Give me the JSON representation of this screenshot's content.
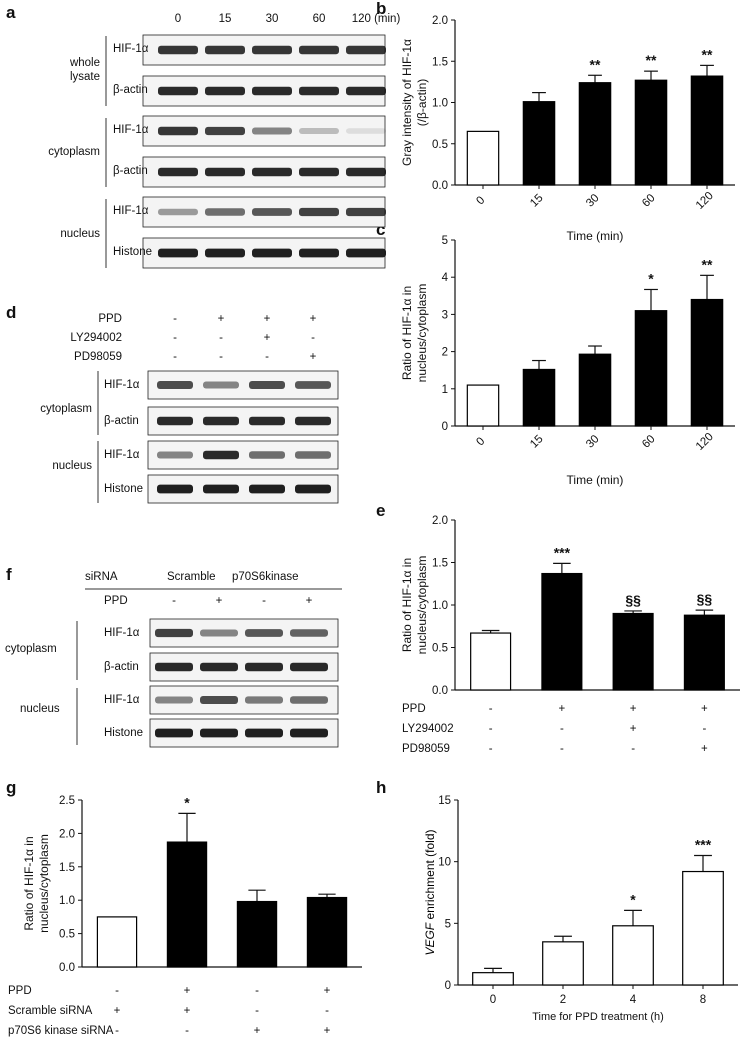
{
  "panels": {
    "a": {
      "letter": "a",
      "times": [
        "0",
        "15",
        "30",
        "60",
        "120 (min)"
      ],
      "group_whole": [
        "whole",
        "lysate"
      ],
      "group_cytoplasm": "cytoplasm",
      "group_nucleus": "nucleus",
      "rows": [
        "HIF-1α",
        "β-actin",
        "HIF-1α",
        "β-actin",
        "HIF-1α",
        "Histone"
      ],
      "band_levels": [
        [
          0.85,
          0.85,
          0.85,
          0.85,
          0.85
        ],
        [
          0.9,
          0.9,
          0.9,
          0.9,
          0.9
        ],
        [
          0.85,
          0.8,
          0.5,
          0.25,
          0.1
        ],
        [
          0.9,
          0.9,
          0.9,
          0.9,
          0.9
        ],
        [
          0.4,
          0.6,
          0.7,
          0.8,
          0.8
        ],
        [
          0.95,
          0.95,
          0.95,
          0.95,
          0.95
        ]
      ]
    },
    "d": {
      "letter": "d",
      "treatments": [
        {
          "label": "PPD",
          "signs": [
            "-",
            "+",
            "+",
            "+"
          ]
        },
        {
          "label": "LY294002",
          "signs": [
            "-",
            "-",
            "+",
            "-"
          ]
        },
        {
          "label": "PD98059",
          "signs": [
            "-",
            "-",
            "-",
            "+"
          ]
        }
      ],
      "group_cytoplasm": "cytoplasm",
      "group_nucleus": "nucleus",
      "rows": [
        "HIF-1α",
        "β-actin",
        "HIF-1α",
        "Histone"
      ],
      "band_levels": [
        [
          0.75,
          0.5,
          0.75,
          0.7
        ],
        [
          0.9,
          0.9,
          0.9,
          0.9
        ],
        [
          0.5,
          0.9,
          0.6,
          0.6
        ],
        [
          0.95,
          0.95,
          0.95,
          0.95
        ]
      ]
    },
    "f": {
      "letter": "f",
      "sirna_label": "siRNA",
      "sirna_groups": [
        "Scramble",
        "p70S6kinase"
      ],
      "ppd_label": "PPD",
      "ppd_signs": [
        "-",
        "+",
        "-",
        "+"
      ],
      "group_cytoplasm": "cytoplasm",
      "group_nucleus": "nucleus",
      "rows": [
        "HIF-1α",
        "β-actin",
        "HIF-1α",
        "Histone"
      ],
      "band_levels": [
        [
          0.8,
          0.5,
          0.7,
          0.65
        ],
        [
          0.9,
          0.9,
          0.9,
          0.9
        ],
        [
          0.5,
          0.75,
          0.55,
          0.6
        ],
        [
          0.95,
          0.95,
          0.95,
          0.95
        ]
      ]
    }
  },
  "chart_data": [
    {
      "panel": "b",
      "type": "bar",
      "ylabel": [
        "Gray intensity of HIF-1α",
        "(/β-actin)"
      ],
      "xlabel": "Time (min)",
      "categories": [
        "0",
        "15",
        "30",
        "60",
        "120"
      ],
      "values": [
        0.65,
        1.01,
        1.24,
        1.27,
        1.32
      ],
      "errors": [
        0.0,
        0.11,
        0.09,
        0.11,
        0.13
      ],
      "fills": [
        "white",
        "black",
        "black",
        "black",
        "black"
      ],
      "annotations": [
        "",
        "",
        "**",
        "**",
        "**"
      ],
      "ylim": [
        0,
        2.0
      ],
      "yticks": [
        "0.0",
        "0.5",
        "1.0",
        "1.5",
        "2.0"
      ],
      "grid": false
    },
    {
      "panel": "c",
      "type": "bar",
      "ylabel": [
        "Ratio of HIF-1α in",
        "nucleus/cytoplasm"
      ],
      "xlabel": "Time (min)",
      "categories": [
        "0",
        "15",
        "30",
        "60",
        "120"
      ],
      "values": [
        1.1,
        1.52,
        1.93,
        3.1,
        3.4
      ],
      "errors": [
        0.0,
        0.24,
        0.22,
        0.57,
        0.65
      ],
      "fills": [
        "white",
        "black",
        "black",
        "black",
        "black"
      ],
      "annotations": [
        "",
        "",
        "",
        "*",
        "**"
      ],
      "ylim": [
        0,
        5
      ],
      "yticks": [
        "0",
        "1",
        "2",
        "3",
        "4",
        "5"
      ],
      "grid": false
    },
    {
      "panel": "e",
      "type": "bar",
      "ylabel": [
        "Ratio of HIF-1α in",
        "nucleus/cytoplasm"
      ],
      "categories": [
        "1",
        "2",
        "3",
        "4"
      ],
      "values": [
        0.67,
        1.37,
        0.9,
        0.88
      ],
      "errors": [
        0.03,
        0.12,
        0.03,
        0.06
      ],
      "fills": [
        "white",
        "black",
        "black",
        "black"
      ],
      "annotations": [
        "",
        "***",
        "§§",
        "§§"
      ],
      "ylim": [
        0,
        2.0
      ],
      "yticks": [
        "0.0",
        "0.5",
        "1.0",
        "1.5",
        "2.0"
      ],
      "treatments": [
        {
          "label": "PPD",
          "signs": [
            "-",
            "+",
            "+",
            "+"
          ]
        },
        {
          "label": "LY294002",
          "signs": [
            "-",
            "-",
            "+",
            "-"
          ]
        },
        {
          "label": "PD98059",
          "signs": [
            "-",
            "-",
            "-",
            "+"
          ]
        }
      ],
      "grid": false
    },
    {
      "panel": "g",
      "type": "bar",
      "ylabel": [
        "Ratio of HIF-1α in",
        "nucleus/cytoplasm"
      ],
      "categories": [
        "1",
        "2",
        "3",
        "4"
      ],
      "values": [
        0.75,
        1.87,
        0.98,
        1.04
      ],
      "errors": [
        0.0,
        0.43,
        0.17,
        0.05
      ],
      "fills": [
        "white",
        "black",
        "black",
        "black"
      ],
      "annotations": [
        "",
        "*",
        "",
        ""
      ],
      "ylim": [
        0,
        2.5
      ],
      "yticks": [
        "0.0",
        "0.5",
        "1.0",
        "1.5",
        "2.0",
        "2.5"
      ],
      "treatments": [
        {
          "label": "PPD",
          "signs": [
            "-",
            "+",
            "-",
            "+"
          ]
        },
        {
          "label": "Scramble siRNA",
          "signs": [
            "+",
            "+",
            "-",
            "-"
          ]
        },
        {
          "label": "p70S6 kinase siRNA",
          "signs": [
            "-",
            "-",
            "+",
            "+"
          ]
        }
      ],
      "grid": false
    },
    {
      "panel": "h",
      "type": "bar",
      "ylabel_italic": "VEGF",
      "ylabel_rest": " enrichment (fold)",
      "xlabel": "Time for PPD treatment (h)",
      "categories": [
        "0",
        "2",
        "4",
        "8"
      ],
      "values": [
        1.0,
        3.5,
        4.8,
        9.2
      ],
      "errors": [
        0.35,
        0.45,
        1.25,
        1.3
      ],
      "fills": [
        "white",
        "white",
        "white",
        "white"
      ],
      "annotations": [
        "",
        "",
        "*",
        "***"
      ],
      "ylim": [
        0,
        15
      ],
      "yticks": [
        "0",
        "5",
        "10",
        "15"
      ],
      "grid": false
    }
  ]
}
